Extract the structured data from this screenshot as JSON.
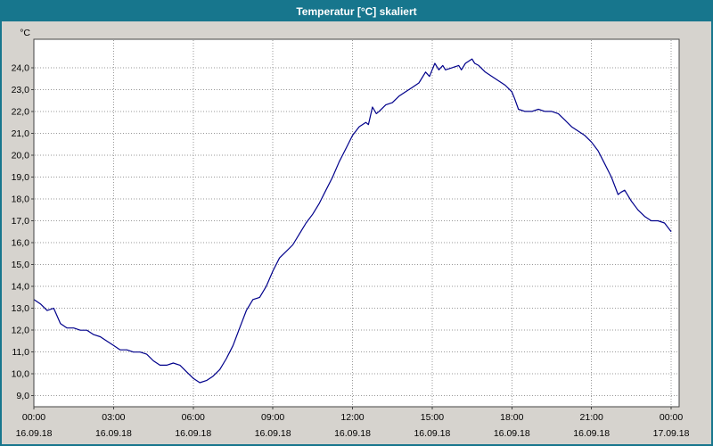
{
  "window": {
    "title": "Temperatur [°C] skaliert"
  },
  "colors": {
    "titlebar": "#17768d",
    "window_bg": "#d6d3ce",
    "plot_bg": "#ffffff",
    "grid": "#999999",
    "frame": "#444444",
    "line": "#00008b"
  },
  "chart_data": {
    "type": "line",
    "title": "Temperatur [°C] skaliert",
    "y_unit_label": "°C",
    "grid": true,
    "legend": "none",
    "x_range_hours": [
      0,
      24.3
    ],
    "y_range": [
      8.5,
      25.3
    ],
    "y_ticks": [
      {
        "value": 24,
        "label": "24,0"
      },
      {
        "value": 23,
        "label": "23,0"
      },
      {
        "value": 22,
        "label": "22,0"
      },
      {
        "value": 21,
        "label": "21,0"
      },
      {
        "value": 20,
        "label": "20,0"
      },
      {
        "value": 19,
        "label": "19,0"
      },
      {
        "value": 18,
        "label": "18,0"
      },
      {
        "value": 17,
        "label": "17,0"
      },
      {
        "value": 16,
        "label": "16,0"
      },
      {
        "value": 15,
        "label": "15,0"
      },
      {
        "value": 14,
        "label": "14,0"
      },
      {
        "value": 13,
        "label": "13,0"
      },
      {
        "value": 12,
        "label": "12,0"
      },
      {
        "value": 11,
        "label": "11,0"
      },
      {
        "value": 10,
        "label": "10,0"
      },
      {
        "value": 9,
        "label": "9,0"
      }
    ],
    "x_ticks": [
      {
        "hour": 0,
        "time": "00:00",
        "date": "16.09.18"
      },
      {
        "hour": 3,
        "time": "03:00",
        "date": "16.09.18"
      },
      {
        "hour": 6,
        "time": "06:00",
        "date": "16.09.18"
      },
      {
        "hour": 9,
        "time": "09:00",
        "date": "16.09.18"
      },
      {
        "hour": 12,
        "time": "12:00",
        "date": "16.09.18"
      },
      {
        "hour": 15,
        "time": "15:00",
        "date": "16.09.18"
      },
      {
        "hour": 18,
        "time": "18:00",
        "date": "16.09.18"
      },
      {
        "hour": 21,
        "time": "21:00",
        "date": "16.09.18"
      },
      {
        "hour": 24,
        "time": "00:00",
        "date": "17.09.18"
      }
    ],
    "series": [
      {
        "name": "Temperatur",
        "unit": "°C",
        "points": [
          [
            0.0,
            13.4
          ],
          [
            0.25,
            13.2
          ],
          [
            0.5,
            12.9
          ],
          [
            0.75,
            13.0
          ],
          [
            1.0,
            12.3
          ],
          [
            1.25,
            12.1
          ],
          [
            1.5,
            12.1
          ],
          [
            1.75,
            12.0
          ],
          [
            2.0,
            12.0
          ],
          [
            2.25,
            11.8
          ],
          [
            2.5,
            11.7
          ],
          [
            2.75,
            11.5
          ],
          [
            3.0,
            11.3
          ],
          [
            3.25,
            11.1
          ],
          [
            3.5,
            11.1
          ],
          [
            3.75,
            11.0
          ],
          [
            4.0,
            11.0
          ],
          [
            4.25,
            10.9
          ],
          [
            4.5,
            10.6
          ],
          [
            4.75,
            10.4
          ],
          [
            5.0,
            10.4
          ],
          [
            5.25,
            10.5
          ],
          [
            5.5,
            10.4
          ],
          [
            5.75,
            10.1
          ],
          [
            6.0,
            9.8
          ],
          [
            6.25,
            9.6
          ],
          [
            6.5,
            9.7
          ],
          [
            6.75,
            9.9
          ],
          [
            7.0,
            10.2
          ],
          [
            7.25,
            10.7
          ],
          [
            7.5,
            11.3
          ],
          [
            7.75,
            12.1
          ],
          [
            8.0,
            12.9
          ],
          [
            8.25,
            13.4
          ],
          [
            8.5,
            13.5
          ],
          [
            8.75,
            14.0
          ],
          [
            9.0,
            14.7
          ],
          [
            9.25,
            15.3
          ],
          [
            9.5,
            15.6
          ],
          [
            9.75,
            15.9
          ],
          [
            10.0,
            16.4
          ],
          [
            10.25,
            16.9
          ],
          [
            10.5,
            17.3
          ],
          [
            10.75,
            17.8
          ],
          [
            11.0,
            18.4
          ],
          [
            11.25,
            19.0
          ],
          [
            11.5,
            19.7
          ],
          [
            11.75,
            20.3
          ],
          [
            12.0,
            20.9
          ],
          [
            12.25,
            21.3
          ],
          [
            12.5,
            21.5
          ],
          [
            12.6,
            21.4
          ],
          [
            12.75,
            22.2
          ],
          [
            12.9,
            21.9
          ],
          [
            13.0,
            22.0
          ],
          [
            13.25,
            22.3
          ],
          [
            13.5,
            22.4
          ],
          [
            13.75,
            22.7
          ],
          [
            14.0,
            22.9
          ],
          [
            14.25,
            23.1
          ],
          [
            14.5,
            23.3
          ],
          [
            14.75,
            23.8
          ],
          [
            14.9,
            23.6
          ],
          [
            15.0,
            23.9
          ],
          [
            15.1,
            24.2
          ],
          [
            15.25,
            23.9
          ],
          [
            15.4,
            24.1
          ],
          [
            15.5,
            23.9
          ],
          [
            15.75,
            24.0
          ],
          [
            16.0,
            24.1
          ],
          [
            16.1,
            23.9
          ],
          [
            16.25,
            24.2
          ],
          [
            16.5,
            24.4
          ],
          [
            16.6,
            24.2
          ],
          [
            16.75,
            24.1
          ],
          [
            17.0,
            23.8
          ],
          [
            17.25,
            23.6
          ],
          [
            17.5,
            23.4
          ],
          [
            17.75,
            23.2
          ],
          [
            18.0,
            22.9
          ],
          [
            18.1,
            22.6
          ],
          [
            18.25,
            22.1
          ],
          [
            18.5,
            22.0
          ],
          [
            18.75,
            22.0
          ],
          [
            19.0,
            22.1
          ],
          [
            19.25,
            22.0
          ],
          [
            19.5,
            22.0
          ],
          [
            19.75,
            21.9
          ],
          [
            20.0,
            21.6
          ],
          [
            20.25,
            21.3
          ],
          [
            20.5,
            21.1
          ],
          [
            20.75,
            20.9
          ],
          [
            21.0,
            20.6
          ],
          [
            21.25,
            20.2
          ],
          [
            21.5,
            19.6
          ],
          [
            21.75,
            19.0
          ],
          [
            22.0,
            18.2
          ],
          [
            22.1,
            18.3
          ],
          [
            22.25,
            18.4
          ],
          [
            22.4,
            18.1
          ],
          [
            22.5,
            17.9
          ],
          [
            22.75,
            17.5
          ],
          [
            23.0,
            17.2
          ],
          [
            23.25,
            17.0
          ],
          [
            23.5,
            17.0
          ],
          [
            23.75,
            16.9
          ],
          [
            24.0,
            16.5
          ]
        ]
      }
    ]
  }
}
